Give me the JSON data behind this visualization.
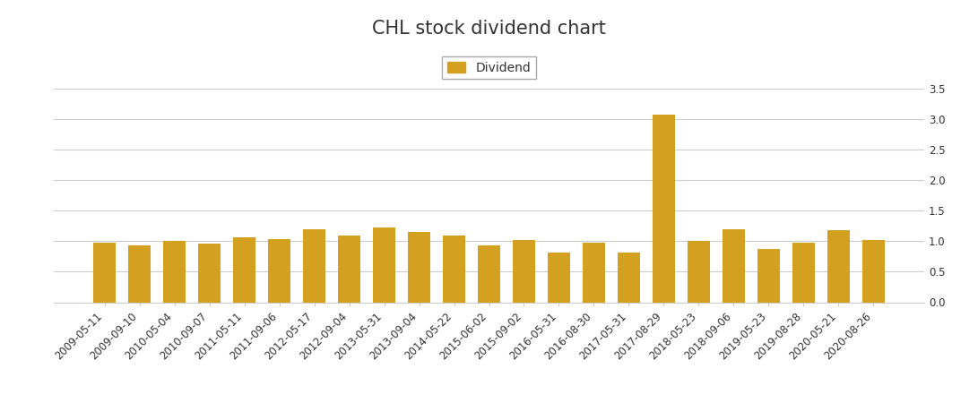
{
  "title": "CHL stock dividend chart",
  "legend_label": "Dividend",
  "bar_color": "#D4A020",
  "background_color": "#ffffff",
  "grid_color": "#cccccc",
  "axis_color": "#cccccc",
  "text_color": "#333333",
  "categories": [
    "2009-05-11",
    "2009-09-10",
    "2010-05-04",
    "2010-09-07",
    "2011-05-11",
    "2011-09-06",
    "2012-05-17",
    "2012-09-04",
    "2013-05-31",
    "2013-09-04",
    "2014-05-22",
    "2015-06-02",
    "2015-09-02",
    "2016-05-31",
    "2016-08-30",
    "2017-05-31",
    "2017-08-29",
    "2018-05-23",
    "2018-09-06",
    "2019-05-23",
    "2019-08-28",
    "2020-05-21",
    "2020-08-26"
  ],
  "values": [
    0.97,
    0.93,
    1.0,
    0.96,
    1.07,
    1.04,
    1.2,
    1.1,
    1.22,
    1.15,
    1.1,
    0.93,
    1.02,
    0.82,
    0.97,
    0.82,
    3.07,
    1.0,
    1.2,
    0.87,
    0.97,
    1.18,
    1.02
  ],
  "ylim": [
    0,
    3.5
  ],
  "yticks": [
    0,
    0.5,
    1.0,
    1.5,
    2.0,
    2.5,
    3.0,
    3.5
  ],
  "figsize": [
    10.91,
    4.5
  ],
  "dpi": 100,
  "title_fontsize": 15,
  "tick_fontsize": 8.5,
  "legend_fontsize": 10
}
